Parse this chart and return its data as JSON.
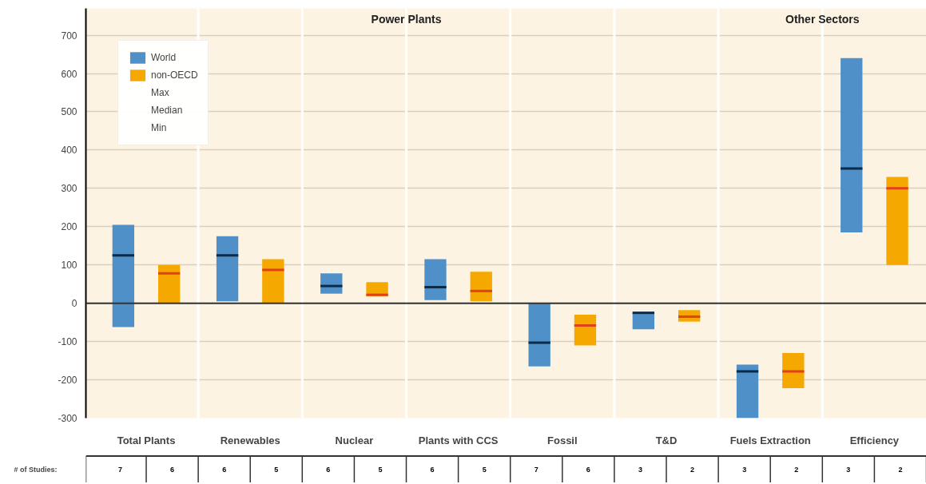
{
  "chart_data": {
    "type": "box",
    "categories": [
      "Total Plants",
      "Renewables",
      "Nuclear",
      "Plants with CCS",
      "Fossil",
      "T&D",
      "Fuels Extraction",
      "Efficiency"
    ],
    "series": [
      {
        "name": "World",
        "color": "#5090c8",
        "boxes": [
          {
            "low": -62,
            "q1": -62,
            "median": 125,
            "q3": 205,
            "high": 205
          },
          {
            "low": 5,
            "q1": 5,
            "median": 125,
            "q3": 175,
            "high": 175
          },
          {
            "low": 25,
            "q1": 25,
            "median": 45,
            "q3": 78,
            "high": 78
          },
          {
            "low": 8,
            "q1": 8,
            "median": 42,
            "q3": 115,
            "high": 115
          },
          {
            "low": -165,
            "q1": -165,
            "median": -103,
            "q3": 0,
            "high": 0
          },
          {
            "low": -68,
            "q1": -68,
            "median": -25,
            "q3": -25,
            "high": -25
          },
          {
            "low": -300,
            "q1": -300,
            "median": -178,
            "q3": -160,
            "high": -160
          },
          {
            "low": 185,
            "q1": 185,
            "median": 352,
            "q3": 640,
            "high": 640
          }
        ]
      },
      {
        "name": "non-OECD",
        "color": "#f5a800",
        "boxes": [
          {
            "low": 0,
            "q1": 0,
            "median": 78,
            "q3": 100,
            "high": 100
          },
          {
            "low": 0,
            "q1": 0,
            "median": 87,
            "q3": 115,
            "high": 115
          },
          {
            "low": 18,
            "q1": 18,
            "median": 22,
            "q3": 55,
            "high": 55
          },
          {
            "low": 5,
            "q1": 5,
            "median": 32,
            "q3": 82,
            "high": 82
          },
          {
            "low": -110,
            "q1": -110,
            "median": -58,
            "q3": -30,
            "high": -30
          },
          {
            "low": -48,
            "q1": -48,
            "median": -35,
            "q3": -18,
            "high": -18
          },
          {
            "low": -222,
            "q1": -222,
            "median": -178,
            "q3": -130,
            "high": -130
          },
          {
            "low": 100,
            "q1": 100,
            "median": 300,
            "q3": 330,
            "high": 330
          }
        ]
      }
    ],
    "ylim": [
      -300,
      770
    ],
    "yticks": [
      -300,
      -200,
      -100,
      0,
      100,
      200,
      300,
      400,
      500,
      600,
      700
    ],
    "grid": "y",
    "legend": "top left",
    "ref_lines": [
      {
        "axis": "y",
        "value": 0,
        "color": "#333333"
      }
    ],
    "annotations": [
      "Power Plants",
      "Other Sectors",
      "Max",
      "Median",
      "Min",
      "# of Studies:",
      "7",
      "6",
      "6",
      "5",
      "6",
      "5",
      "6",
      "5",
      "7",
      "6",
      "3",
      "2",
      "3",
      "2",
      "3",
      "2"
    ]
  }
}
